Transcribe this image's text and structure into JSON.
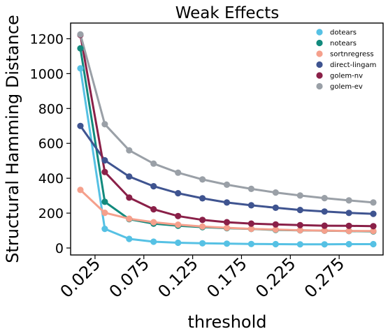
{
  "chart_data": {
    "type": "line",
    "title": "Weak Effects",
    "xlabel": "threshold",
    "ylabel": "Structural Hamming Distance",
    "xlim": [
      0.0,
      0.32
    ],
    "ylim": [
      -40,
      1290
    ],
    "x": [
      0.01,
      0.035,
      0.06,
      0.085,
      0.11,
      0.135,
      0.16,
      0.185,
      0.21,
      0.235,
      0.26,
      0.285,
      0.31
    ],
    "xticks": [
      0.025,
      0.075,
      0.125,
      0.175,
      0.225,
      0.275
    ],
    "xtick_labels": [
      "0.025",
      "0.075",
      "0.125",
      "0.175",
      "0.225",
      "0.275"
    ],
    "yticks": [
      0,
      200,
      400,
      600,
      800,
      1000,
      1200
    ],
    "ytick_labels": [
      "0",
      "200",
      "400",
      "600",
      "800",
      "1000",
      "1200"
    ],
    "grid": false,
    "legend_position": "top-right",
    "series": [
      {
        "name": "dotears",
        "color": "#56c1e4",
        "values": [
          1030,
          110,
          52,
          36,
          30,
          27,
          25,
          23,
          22,
          21,
          21,
          22,
          22
        ]
      },
      {
        "name": "notears",
        "color": "#128a7d",
        "values": [
          1145,
          265,
          165,
          140,
          128,
          120,
          114,
          109,
          104,
          101,
          99,
          97,
          95
        ]
      },
      {
        "name": "sortnregress",
        "color": "#f5a08c",
        "values": [
          333,
          202,
          168,
          148,
          134,
          123,
          116,
          110,
          106,
          102,
          100,
          98,
          97
        ]
      },
      {
        "name": "direct-lingam",
        "color": "#3f5490",
        "values": [
          700,
          503,
          410,
          354,
          314,
          285,
          261,
          245,
          231,
          218,
          209,
          201,
          196
        ]
      },
      {
        "name": "golem-nv",
        "color": "#8a2048",
        "values": [
          1222,
          436,
          289,
          222,
          183,
          161,
          148,
          140,
          135,
          131,
          128,
          127,
          125
        ]
      },
      {
        "name": "golem-ev",
        "color": "#9aa0a7",
        "values": [
          1225,
          710,
          560,
          484,
          432,
          393,
          363,
          339,
          318,
          301,
          286,
          273,
          261
        ]
      }
    ]
  }
}
